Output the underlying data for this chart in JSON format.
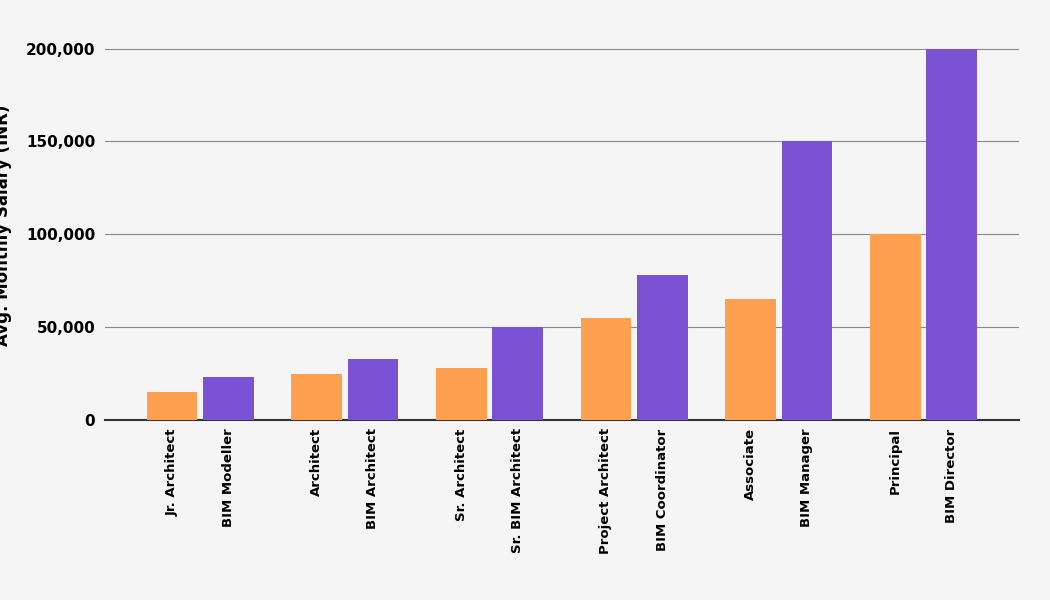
{
  "pairs": [
    {
      "arch_label": "Jr. Architect",
      "bim_label": "BIM Modeller",
      "arch_val": 15000,
      "bim_val": 23000
    },
    {
      "arch_label": "Architect",
      "bim_label": "BIM Architect",
      "arch_val": 25000,
      "bim_val": 33000
    },
    {
      "arch_label": "Sr. Architect",
      "bim_label": "Sr. BIM Architect",
      "arch_val": 28000,
      "bim_val": 50000
    },
    {
      "arch_label": "Project Architect",
      "bim_label": "BIM Coordinator",
      "arch_val": 55000,
      "bim_val": 78000
    },
    {
      "arch_label": "Associate",
      "bim_label": "BIM Manager",
      "arch_val": 65000,
      "bim_val": 150000
    },
    {
      "arch_label": "Principal",
      "bim_label": "BIM Director",
      "arch_val": 100000,
      "bim_val": 200000
    }
  ],
  "arch_color": "#FFA050",
  "bim_color": "#7B52D3",
  "ylabel": "Avg. Monthly Salary (INR)",
  "ylim": [
    0,
    210000
  ],
  "yticks": [
    0,
    50000,
    100000,
    150000,
    200000
  ],
  "ytick_labels": [
    "0",
    "50,000",
    "100,000",
    "150,000",
    "200,000"
  ],
  "background_color": "#F5F5F5",
  "bar_width": 0.35,
  "grid_color": "#888888",
  "axis_fontsize": 12,
  "tick_fontsize": 11
}
